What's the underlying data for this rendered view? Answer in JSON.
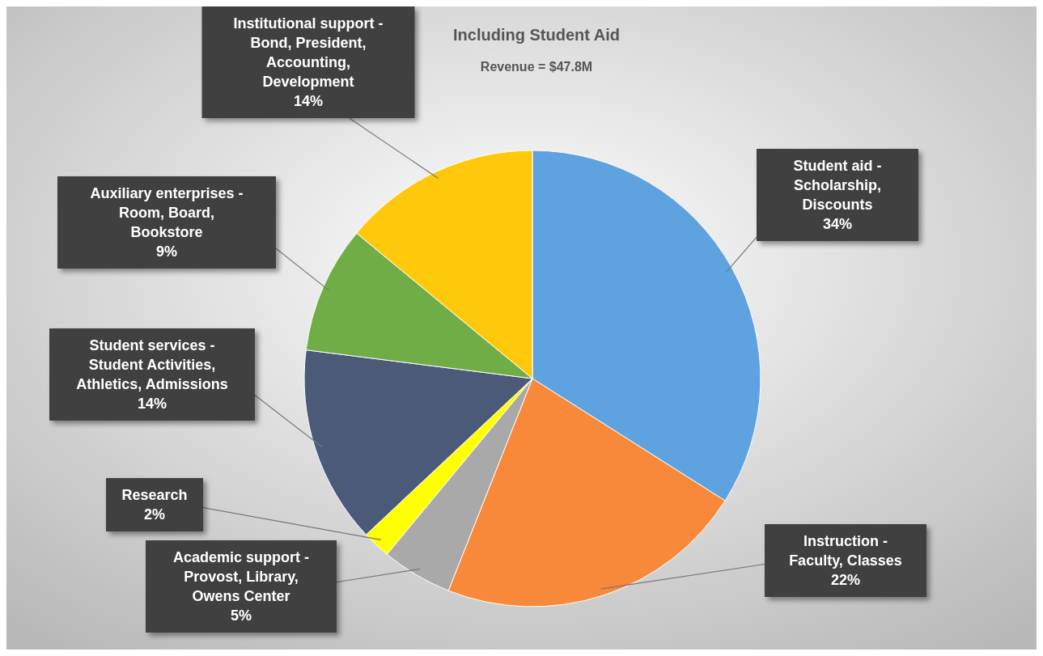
{
  "chart_data": {
    "type": "pie",
    "title": "Including Student Aid",
    "subtitle": "Revenue = $47.8M",
    "categories": [
      "Student aid - Scholarship, Discounts",
      "Instruction - Faculty, Classes",
      "Academic support - Provost, Library, Owens Center",
      "Research",
      "Student services - Student Activities, Athletics, Admissions",
      "Auxiliary enterprises - Room, Board, Bookstore",
      "Institutional support - Bond, President, Accounting, Development"
    ],
    "values": [
      34,
      22,
      5,
      2,
      14,
      9,
      14
    ],
    "value_labels": [
      "34%",
      "22%",
      "5%",
      "2%",
      "14%",
      "9%",
      "14%"
    ],
    "colors": [
      "#5fa2e0",
      "#f8883a",
      "#a9a9a9",
      "#ffff00",
      "#4a5a78",
      "#70ad47",
      "#ffc80a"
    ]
  }
}
